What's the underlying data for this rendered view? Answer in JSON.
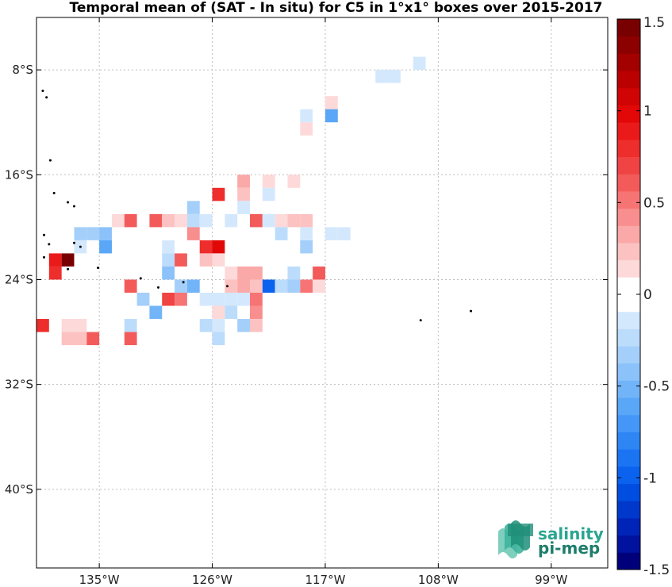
{
  "title": "Temporal mean of (SAT - In situ) for C5 in 1°x1° boxes over 2015-2017",
  "logo": {
    "line1": "salinity",
    "line2": "pi-mep",
    "color_line1": "#2aa58f",
    "color_line2": "#1e7d6c"
  },
  "colors": {
    "axes": "#000000",
    "grid": "#bdbdbd",
    "land": "#000000"
  },
  "chart_data": {
    "type": "heatmap",
    "xlim": [
      140,
      94.5
    ],
    "ylim": [
      -46,
      -4
    ],
    "x_ticks": [
      {
        "value": 135,
        "label": "135°W"
      },
      {
        "value": 126,
        "label": "126°W"
      },
      {
        "value": 117,
        "label": "117°W"
      },
      {
        "value": 108,
        "label": "108°W"
      },
      {
        "value": 99,
        "label": "99°W"
      }
    ],
    "y_ticks": [
      {
        "value": -8,
        "label": "8°S"
      },
      {
        "value": -16,
        "label": "16°S"
      },
      {
        "value": -24,
        "label": "24°S"
      },
      {
        "value": -32,
        "label": "32°S"
      },
      {
        "value": -40,
        "label": "40°S"
      }
    ],
    "grid": true,
    "colorbar": {
      "min": -1.5,
      "max": 1.5,
      "levels": 32,
      "ticks": [
        {
          "value": 1.5,
          "label": "1.5"
        },
        {
          "value": 1,
          "label": "1"
        },
        {
          "value": 0.5,
          "label": "0.5"
        },
        {
          "value": 0,
          "label": "0"
        },
        {
          "value": -0.5,
          "label": "-0.5"
        },
        {
          "value": -1,
          "label": "-1"
        },
        {
          "value": -1.5,
          "label": "-1.5"
        }
      ],
      "placement": "right"
    },
    "cells": [
      {
        "lon_w": 110,
        "lat": -7,
        "value": -0.1
      },
      {
        "lon_w": 112,
        "lat": -8,
        "value": -0.1
      },
      {
        "lon_w": 113,
        "lat": -8,
        "value": -0.1
      },
      {
        "lon_w": 117,
        "lat": -10,
        "value": 0.15
      },
      {
        "lon_w": 117,
        "lat": -11,
        "value": -0.65
      },
      {
        "lon_w": 119,
        "lat": -11,
        "value": -0.1
      },
      {
        "lon_w": 119,
        "lat": -12,
        "value": 0.1
      },
      {
        "lon_w": 122,
        "lat": -16,
        "value": 0.15
      },
      {
        "lon_w": 126,
        "lat": -17,
        "value": 0.8
      },
      {
        "lon_w": 124,
        "lat": -16,
        "value": 0.35
      },
      {
        "lon_w": 124,
        "lat": -17,
        "value": 0.2
      },
      {
        "lon_w": 124,
        "lat": -18,
        "value": -0.1
      },
      {
        "lon_w": 122,
        "lat": -17,
        "value": -0.1
      },
      {
        "lon_w": 120,
        "lat": -16,
        "value": 0.15
      },
      {
        "lon_w": 128,
        "lat": -18,
        "value": -0.3
      },
      {
        "lon_w": 134,
        "lat": -19,
        "value": 0.15
      },
      {
        "lon_w": 133,
        "lat": -19,
        "value": 0.65
      },
      {
        "lon_w": 131,
        "lat": -19,
        "value": 0.6
      },
      {
        "lon_w": 130,
        "lat": -19,
        "value": 0.25
      },
      {
        "lon_w": 129,
        "lat": -19,
        "value": 0.15
      },
      {
        "lon_w": 128,
        "lat": -19,
        "value": -0.2
      },
      {
        "lon_w": 127,
        "lat": -19,
        "value": -0.15
      },
      {
        "lon_w": 125,
        "lat": -19,
        "value": -0.1
      },
      {
        "lon_w": 123,
        "lat": -19,
        "value": 0.6
      },
      {
        "lon_w": 122,
        "lat": -19,
        "value": -0.1
      },
      {
        "lon_w": 121,
        "lat": -19,
        "value": 0.15
      },
      {
        "lon_w": 120,
        "lat": -19,
        "value": 0.2
      },
      {
        "lon_w": 119,
        "lat": -19,
        "value": 0.2
      },
      {
        "lon_w": 119,
        "lat": -20,
        "value": -0.1
      },
      {
        "lon_w": 117,
        "lat": -20,
        "value": -0.1
      },
      {
        "lon_w": 116,
        "lat": -20,
        "value": -0.1
      },
      {
        "lon_w": 137,
        "lat": -20,
        "value": -0.3
      },
      {
        "lon_w": 136,
        "lat": -20,
        "value": -0.35
      },
      {
        "lon_w": 135,
        "lat": -20,
        "value": -0.45
      },
      {
        "lon_w": 128,
        "lat": -20,
        "value": 0.45
      },
      {
        "lon_w": 121,
        "lat": -20,
        "value": -0.2
      },
      {
        "lon_w": 137,
        "lat": -21,
        "value": -0.1
      },
      {
        "lon_w": 135,
        "lat": -21,
        "value": -0.6
      },
      {
        "lon_w": 130,
        "lat": -21,
        "value": -0.15
      },
      {
        "lon_w": 127,
        "lat": -21,
        "value": 0.75
      },
      {
        "lon_w": 126,
        "lat": -21,
        "value": 0.95
      },
      {
        "lon_w": 119,
        "lat": -21,
        "value": -0.35
      },
      {
        "lon_w": 139,
        "lat": -22,
        "value": 0.85
      },
      {
        "lon_w": 138,
        "lat": -22,
        "value": 1.45
      },
      {
        "lon_w": 130,
        "lat": -22,
        "value": -0.2
      },
      {
        "lon_w": 129,
        "lat": -22,
        "value": 0.6
      },
      {
        "lon_w": 127,
        "lat": -22,
        "value": 0.25
      },
      {
        "lon_w": 126,
        "lat": -22,
        "value": 0.15
      },
      {
        "lon_w": 139,
        "lat": -23,
        "value": 0.75
      },
      {
        "lon_w": 130,
        "lat": -23,
        "value": -0.45
      },
      {
        "lon_w": 125,
        "lat": -23,
        "value": 0.15
      },
      {
        "lon_w": 124,
        "lat": -23,
        "value": 0.3
      },
      {
        "lon_w": 123,
        "lat": -23,
        "value": 0.3
      },
      {
        "lon_w": 120,
        "lat": -23,
        "value": -0.25
      },
      {
        "lon_w": 118,
        "lat": -23,
        "value": 0.65
      },
      {
        "lon_w": 133,
        "lat": -24,
        "value": 0.65
      },
      {
        "lon_w": 129,
        "lat": -24,
        "value": -0.3
      },
      {
        "lon_w": 128,
        "lat": -24,
        "value": -0.55
      },
      {
        "lon_w": 125,
        "lat": -24,
        "value": 0.2
      },
      {
        "lon_w": 124,
        "lat": -24,
        "value": 0.3
      },
      {
        "lon_w": 123,
        "lat": -24,
        "value": 0.2
      },
      {
        "lon_w": 122,
        "lat": -24,
        "value": -0.95
      },
      {
        "lon_w": 121,
        "lat": -24,
        "value": -0.25
      },
      {
        "lon_w": 120,
        "lat": -24,
        "value": -0.3
      },
      {
        "lon_w": 119,
        "lat": -24,
        "value": 0.55
      },
      {
        "lon_w": 118,
        "lat": -24,
        "value": 0.15
      },
      {
        "lon_w": 132,
        "lat": -25,
        "value": -0.3
      },
      {
        "lon_w": 130,
        "lat": -25,
        "value": 0.7
      },
      {
        "lon_w": 129,
        "lat": -25,
        "value": 0.5
      },
      {
        "lon_w": 127,
        "lat": -25,
        "value": -0.1
      },
      {
        "lon_w": 126,
        "lat": -25,
        "value": -0.1
      },
      {
        "lon_w": 125,
        "lat": -25,
        "value": -0.1
      },
      {
        "lon_w": 124,
        "lat": -25,
        "value": -0.1
      },
      {
        "lon_w": 123,
        "lat": -25,
        "value": 0.5
      },
      {
        "lon_w": 131,
        "lat": -26,
        "value": -0.5
      },
      {
        "lon_w": 126,
        "lat": -26,
        "value": 0.15
      },
      {
        "lon_w": 125,
        "lat": -26,
        "value": -0.25
      },
      {
        "lon_w": 123,
        "lat": -26,
        "value": 0.4
      },
      {
        "lon_w": 140,
        "lat": -27,
        "value": 0.8
      },
      {
        "lon_w": 138,
        "lat": -27,
        "value": 0.15
      },
      {
        "lon_w": 137,
        "lat": -27,
        "value": 0.15
      },
      {
        "lon_w": 133,
        "lat": -27,
        "value": -0.25
      },
      {
        "lon_w": 127,
        "lat": -27,
        "value": -0.2
      },
      {
        "lon_w": 126,
        "lat": -27,
        "value": -0.1
      },
      {
        "lon_w": 124,
        "lat": -27,
        "value": -0.35
      },
      {
        "lon_w": 123,
        "lat": -27,
        "value": 0.2
      },
      {
        "lon_w": 138,
        "lat": -28,
        "value": 0.2
      },
      {
        "lon_w": 137,
        "lat": -28,
        "value": 0.2
      },
      {
        "lon_w": 136,
        "lat": -28,
        "value": 0.6
      },
      {
        "lon_w": 133,
        "lat": -28,
        "value": 0.6
      },
      {
        "lon_w": 126,
        "lat": -28,
        "value": -0.2
      }
    ],
    "islands": [
      {
        "lon_w": 140.3,
        "lat": -8.8
      },
      {
        "lon_w": 139.5,
        "lat": -9.6
      },
      {
        "lon_w": 139.2,
        "lat": -10.1
      },
      {
        "lon_w": 138.9,
        "lat": -14.9
      },
      {
        "lon_w": 138.6,
        "lat": -17.4
      },
      {
        "lon_w": 137.5,
        "lat": -18.1
      },
      {
        "lon_w": 137.0,
        "lat": -18.4
      },
      {
        "lon_w": 139.4,
        "lat": -20.6
      },
      {
        "lon_w": 139.0,
        "lat": -21.3
      },
      {
        "lon_w": 137.0,
        "lat": -21.2
      },
      {
        "lon_w": 136.5,
        "lat": -21.5
      },
      {
        "lon_w": 139.4,
        "lat": -22.3
      },
      {
        "lon_w": 137.5,
        "lat": -23.2
      },
      {
        "lon_w": 135.1,
        "lat": -23.1
      },
      {
        "lon_w": 131.7,
        "lat": -23.9
      },
      {
        "lon_w": 130.3,
        "lat": -24.6
      },
      {
        "lon_w": 128.3,
        "lat": -24.2
      },
      {
        "lon_w": 124.8,
        "lat": -24.5
      },
      {
        "lon_w": 109.4,
        "lat": -27.1
      },
      {
        "lon_w": 105.4,
        "lat": -26.4
      }
    ]
  }
}
